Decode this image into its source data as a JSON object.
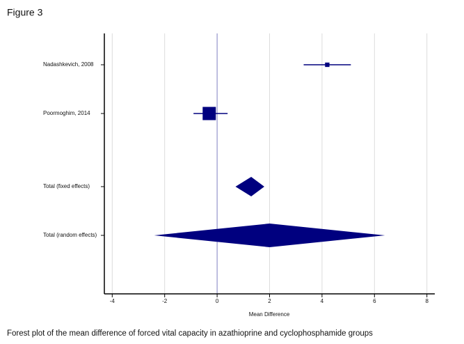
{
  "figure_label": "Figure 3",
  "caption": "Forest plot of the mean difference of forced vital capacity in azathioprine and cyclophosphamide groups",
  "chart_data": {
    "type": "forest",
    "x_label": "Mean Difference",
    "studies": [
      {
        "name": "Nadashkevich, 2008",
        "estimate": 4.2,
        "lower": 3.3,
        "upper": 5.1,
        "weight": 10
      },
      {
        "name": "Poormoghim, 2014",
        "estimate": -0.3,
        "lower": -0.9,
        "upper": 0.4,
        "weight": 90
      }
    ],
    "summaries": [
      {
        "name": "Total (fixed effects)",
        "estimate": 1.3,
        "lower": 0.7,
        "upper": 1.8
      },
      {
        "name": "Total (random effects)",
        "estimate": 2.0,
        "lower": -2.4,
        "upper": 6.4
      }
    ],
    "color": "#00007f",
    "xlim": [
      -4.3,
      8.3
    ],
    "xticks": [
      -4,
      -2,
      0,
      2,
      4,
      6,
      8
    ],
    "grid": true
  }
}
